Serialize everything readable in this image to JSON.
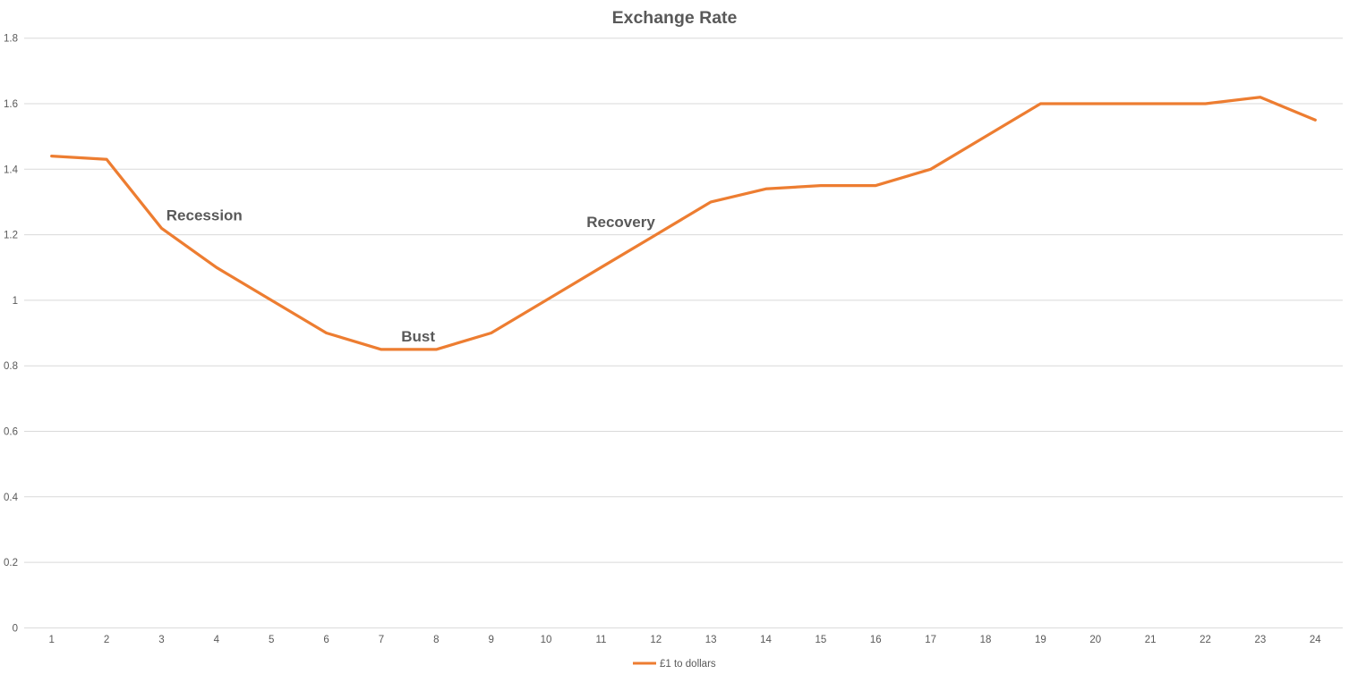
{
  "chart_data": {
    "type": "line",
    "title": "Exchange Rate",
    "categories": [
      "1",
      "2",
      "3",
      "4",
      "5",
      "6",
      "7",
      "8",
      "9",
      "10",
      "11",
      "12",
      "13",
      "14",
      "15",
      "16",
      "17",
      "18",
      "19",
      "20",
      "21",
      "22",
      "23",
      "24"
    ],
    "series": [
      {
        "name": "£1 to dollars",
        "color": "#ED7D31",
        "values": [
          1.44,
          1.43,
          1.22,
          1.1,
          1.0,
          0.9,
          0.85,
          0.85,
          0.9,
          1.0,
          1.1,
          1.2,
          1.3,
          1.34,
          1.35,
          1.35,
          1.4,
          1.5,
          1.6,
          1.6,
          1.6,
          1.6,
          1.62,
          1.55
        ]
      }
    ],
    "xlabel": "",
    "ylabel": "",
    "ylim": [
      0,
      1.8
    ],
    "y_tick_step": 0.2,
    "y_ticks": [
      "0",
      "0.2",
      "0.4",
      "0.6",
      "0.8",
      "1",
      "1.2",
      "1.4",
      "1.6",
      "1.8"
    ],
    "grid": true,
    "legend_position": "bottom",
    "annotations": [
      {
        "label": "Recession",
        "x": 3.78,
        "y": 1.26
      },
      {
        "label": "Bust",
        "x": 7.67,
        "y": 0.89
      },
      {
        "label": "Recovery",
        "x": 11.36,
        "y": 1.24
      }
    ],
    "colors": {
      "series_line": "#ED7D31",
      "text": "#595959",
      "gridline": "#D9D9D9",
      "background": "#FFFFFF"
    }
  }
}
